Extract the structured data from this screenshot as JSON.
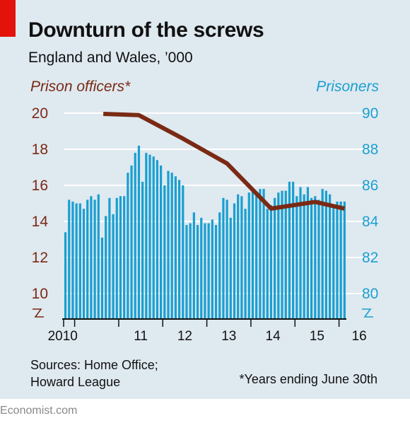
{
  "header": {
    "title": "Downturn of the screws",
    "subtitle": "England and Wales, ’000"
  },
  "footer": {
    "source_line1": "Sources: Home Office;",
    "source_line2": "Howard League",
    "note": "*Years ending June 30th",
    "brand": "Economist.com"
  },
  "colors": {
    "officers_line": "#7a2a14",
    "prisoners_bars": "#1a9fd0",
    "background": "#dfe9f0",
    "accent_tag": "#e3120b"
  },
  "chart_data": {
    "type": "bar",
    "left_axis_label": "Prison officers*",
    "right_axis_label": "Prisoners",
    "left_ticks": [
      "20",
      "18",
      "16",
      "14",
      "12",
      "10"
    ],
    "right_ticks": [
      "90",
      "88",
      "86",
      "84",
      "82",
      "80"
    ],
    "left_ylim": [
      9,
      20
    ],
    "right_ylim": [
      79,
      90
    ],
    "axis_break": true,
    "grid": true,
    "x_tick_labels": [
      "2010",
      "11",
      "12",
      "13",
      "14",
      "15",
      "16"
    ],
    "series": [
      {
        "name": "Prisoners",
        "type": "bar",
        "axis": "right",
        "frequency": "monthly",
        "start": "2009-10",
        "values": [
          83.4,
          85.2,
          85.1,
          85.0,
          85.0,
          84.7,
          85.2,
          85.4,
          85.2,
          85.5,
          83.1,
          84.3,
          85.3,
          84.4,
          85.3,
          85.4,
          85.4,
          86.7,
          87.1,
          87.8,
          88.2,
          86.2,
          87.8,
          87.7,
          87.6,
          87.4,
          87.1,
          86.0,
          86.8,
          86.7,
          86.5,
          86.3,
          86.0,
          83.8,
          83.9,
          84.5,
          83.8,
          84.2,
          83.9,
          83.9,
          84.1,
          83.8,
          84.5,
          85.3,
          85.2,
          84.2,
          85.0,
          85.5,
          85.4,
          84.7,
          85.6,
          85.7,
          85.5,
          85.8,
          85.8,
          84.7,
          84.9,
          85.3,
          85.6,
          85.7,
          85.7,
          86.2,
          86.2,
          85.4,
          85.9,
          85.5,
          85.9,
          85.3,
          85.4,
          85.2,
          85.8,
          85.7,
          85.5,
          84.8,
          85.1,
          85.1,
          85.1
        ]
      },
      {
        "name": "Prison officers*",
        "type": "line",
        "axis": "left",
        "x": [
          "2010",
          "2011",
          "2012",
          "2013",
          "2014",
          "2015",
          "2016"
        ],
        "values": [
          19.96,
          19.89,
          18.59,
          17.21,
          14.71,
          15.08,
          14.71
        ]
      }
    ]
  }
}
